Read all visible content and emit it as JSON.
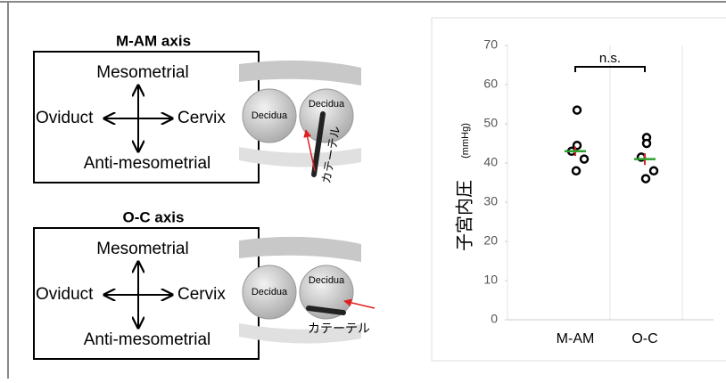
{
  "panels": [
    {
      "title": "M-AM axis",
      "up": "Mesometrial",
      "left": "Oviduct",
      "right": "Cervix",
      "down": "Anti-mesometrial",
      "decidua_a": "Decidua",
      "decidua_b": "Decidua",
      "catheter": "カテーテル"
    },
    {
      "title": "O-C axis",
      "up": "Mesometrial",
      "left": "Oviduct",
      "right": "Cervix",
      "down": "Anti-mesometrial",
      "decidua_a": "Decidua",
      "decidua_b": "Decidua",
      "catheter": "カテーテル"
    }
  ],
  "chart_data": {
    "type": "dot",
    "y_label": "子宮内圧",
    "y_unit": "(mmHg)",
    "categories": [
      "M-AM",
      "O-C"
    ],
    "points": [
      [
        53.5,
        44.5,
        43,
        41,
        38
      ],
      [
        46.5,
        45,
        41.5,
        38,
        36
      ]
    ],
    "point_color": "#000000",
    "means": [
      43,
      41
    ],
    "mean_color": "#2ca02c",
    "errors": [
      1.2,
      1.5
    ],
    "error_color": "#d62728",
    "ylim": [
      0,
      70
    ],
    "yticks": [
      0,
      10,
      20,
      30,
      40,
      50,
      60,
      70
    ],
    "annotation": "n.s."
  }
}
